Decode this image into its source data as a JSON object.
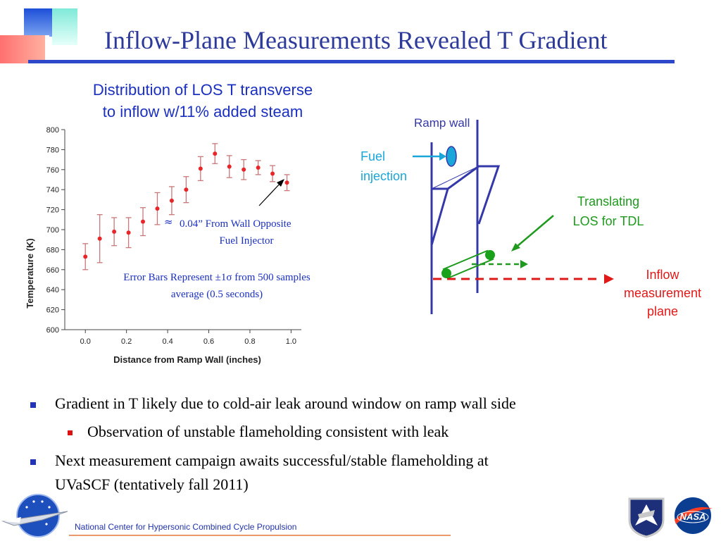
{
  "slide": {
    "title": "Inflow-Plane Measurements Revealed T Gradient"
  },
  "chart_data": {
    "type": "scatter",
    "title_lines": [
      "Distribution of LOS T transverse",
      "to inflow w/11% added steam"
    ],
    "xlabel": "Distance from Ramp Wall (inches)",
    "ylabel": "Temperature (K)",
    "xlim": [
      -0.1,
      1.05
    ],
    "ylim": [
      600,
      800
    ],
    "xticks": [
      "0.0",
      "0.2",
      "0.4",
      "0.6",
      "0.8",
      "1.0"
    ],
    "yticks": [
      "600",
      "620",
      "640",
      "660",
      "680",
      "700",
      "720",
      "740",
      "760",
      "780",
      "800"
    ],
    "series": [
      {
        "x": [
          0.0,
          0.07,
          0.14,
          0.21,
          0.28,
          0.35,
          0.42,
          0.49,
          0.56,
          0.63,
          0.7,
          0.77,
          0.84,
          0.91,
          0.98
        ],
        "y": [
          673,
          691,
          698,
          697,
          708,
          721,
          729,
          740,
          761,
          776,
          763,
          760,
          762,
          756,
          747
        ],
        "err": [
          13,
          24,
          14,
          15,
          14,
          16,
          14,
          13,
          12,
          10,
          11,
          10,
          7,
          8,
          8
        ]
      }
    ],
    "annotations": {
      "arrow_label_lines": [
        "0.04” From Wall Opposite",
        "Fuel Injector"
      ],
      "approx_symbol": "≈",
      "error_note_lines": [
        "Error Bars Represent ±1σ from 500 samples",
        "average (0.5 seconds)"
      ]
    }
  },
  "diagram": {
    "ramp_wall": "Ramp wall",
    "fuel_lines": [
      "Fuel",
      "injection"
    ],
    "translating_lines": [
      "Translating",
      "LOS for TDL"
    ],
    "inflow_lines": [
      "Inflow",
      "measurement",
      "plane"
    ]
  },
  "bullets": [
    {
      "level": 1,
      "text": "Gradient in T likely due to cold-air leak around window on ramp wall side"
    },
    {
      "level": 2,
      "text": "Observation of unstable flameholding consistent with leak"
    },
    {
      "level": 1,
      "text_lines": [
        "Next measurement campaign awaits successful/stable flameholding at",
        "UVaSCF (tentatively fall 2011)"
      ]
    }
  ],
  "footer": {
    "text": "National Center for Hypersonic Combined Cycle Propulsion",
    "logo_right_text": "NASA"
  },
  "colors": {
    "title": "#2d3a9a",
    "accent_blue": "#1b2fc0",
    "marker": "#e8262a",
    "errorbar": "#c8787a",
    "diagram_line": "#3438a8",
    "fuel_arrow": "#1aa6d8",
    "green": "#1e9a1e",
    "inflow_red": "#e01818"
  }
}
